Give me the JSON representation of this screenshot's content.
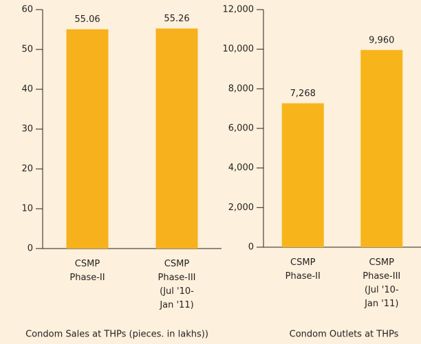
{
  "chart_data": [
    {
      "type": "bar",
      "title": "Condom Sales at THPs (pieces. in lakhs))",
      "categories": [
        "CSMP\nPhase-II",
        "CSMP\nPhase-III\n(Jul '10-\nJan '11)"
      ],
      "values": [
        55.06,
        55.26
      ],
      "color": "#f7b11c",
      "ylim": [
        0,
        60
      ],
      "yticks": [
        0,
        10,
        20,
        30,
        40,
        50,
        60
      ]
    },
    {
      "type": "bar",
      "title": "Condom Outlets at THPs",
      "categories": [
        "CSMP\nPhase-II",
        "CSMP\nPhase-III\n(Jul '10-\nJan '11)"
      ],
      "values": [
        7268,
        9960
      ],
      "value_labels": [
        "7,268",
        "9,960"
      ],
      "color": "#f8b51b",
      "ylim": [
        0,
        12000
      ],
      "yticks": [
        0,
        {
          "value": 2000,
          "label": "2,000"
        },
        {
          "value": 4000,
          "label": "4,000"
        },
        {
          "value": 6000,
          "label": "6,000"
        },
        {
          "value": 8000,
          "label": "8,000"
        },
        {
          "value": 10000,
          "label": "10,000"
        },
        {
          "value": 12000,
          "label": "12,000"
        }
      ]
    }
  ]
}
